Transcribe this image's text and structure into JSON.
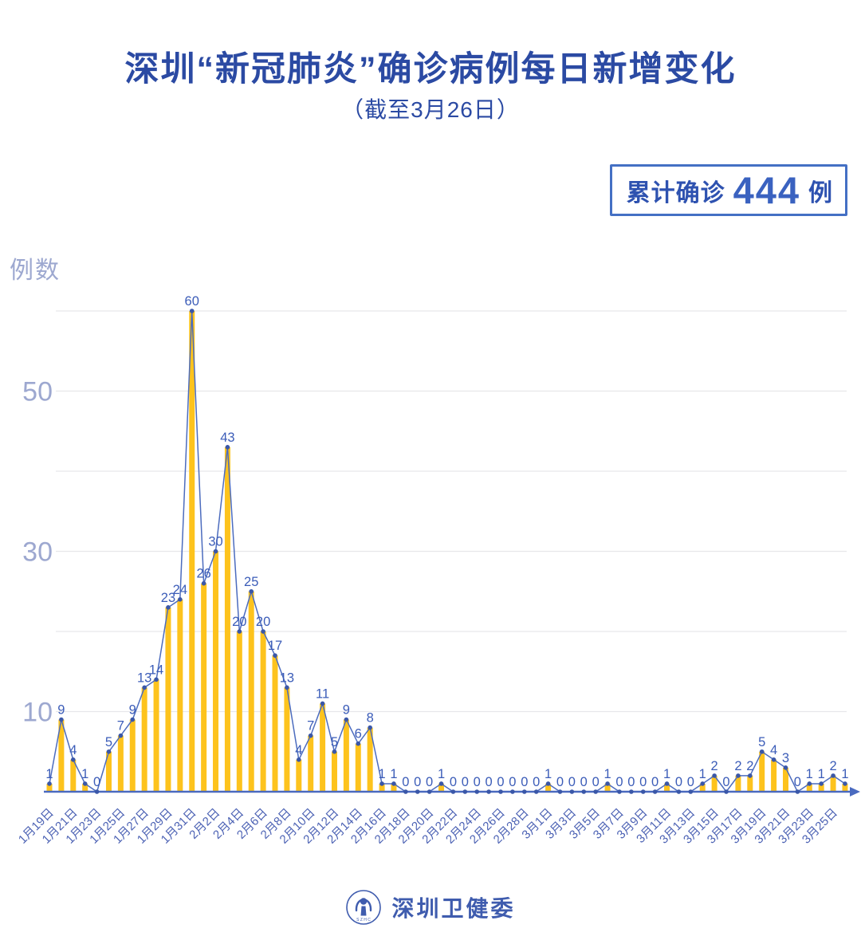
{
  "header": {
    "title": "深圳“新冠肺炎”确诊病例每日新增变化",
    "subtitle": "（截至3月26日）"
  },
  "badge": {
    "label": "累计确诊",
    "value": "444",
    "unit": "例"
  },
  "footer": {
    "org_name": "深圳卫健委",
    "logo_text": "S Z H C"
  },
  "colors": {
    "bar": "#fdc31d",
    "line": "#4c6cbe",
    "marker": "#3a57a8",
    "data_label": "#3b5cb8",
    "axis": "#4a6abf",
    "x_label": "#4c62b4",
    "y_label": "#9da8d0",
    "grid": "#e7e7ea",
    "title": "#2b4aa3",
    "badge_border": "#4470c4",
    "footer": "#3f5cae"
  },
  "chart_data": {
    "type": "bar",
    "line_overlay": true,
    "title": "深圳“新冠肺炎”确诊病例每日新增变化",
    "subtitle": "（截至3月26日）",
    "xlabel": "",
    "ylabel": "例数",
    "ylim": [
      0,
      62
    ],
    "yticks_labeled": [
      10,
      30,
      50
    ],
    "gridline_values": [
      10,
      20,
      30,
      40,
      50,
      60
    ],
    "x_tick_every": 2,
    "legend_position": "none",
    "cumulative_total": 444,
    "x": [
      "1月19日",
      "1月20日",
      "1月21日",
      "1月22日",
      "1月23日",
      "1月24日",
      "1月25日",
      "1月26日",
      "1月27日",
      "1月28日",
      "1月29日",
      "1月30日",
      "1月31日",
      "2月1日",
      "2月2日",
      "2月3日",
      "2月4日",
      "2月5日",
      "2月6日",
      "2月7日",
      "2月8日",
      "2月9日",
      "2月10日",
      "2月11日",
      "2月12日",
      "2月13日",
      "2月14日",
      "2月15日",
      "2月16日",
      "2月17日",
      "2月18日",
      "2月19日",
      "2月20日",
      "2月21日",
      "2月22日",
      "2月23日",
      "2月24日",
      "2月25日",
      "2月26日",
      "2月27日",
      "2月28日",
      "2月29日",
      "3月1日",
      "3月2日",
      "3月3日",
      "3月4日",
      "3月5日",
      "3月6日",
      "3月7日",
      "3月8日",
      "3月9日",
      "3月10日",
      "3月11日",
      "3月12日",
      "3月13日",
      "3月14日",
      "3月15日",
      "3月16日",
      "3月17日",
      "3月18日",
      "3月19日",
      "3月20日",
      "3月21日",
      "3月22日",
      "3月23日",
      "3月24日",
      "3月25日",
      "3月26日"
    ],
    "values": [
      1,
      9,
      4,
      1,
      0,
      5,
      7,
      9,
      13,
      14,
      23,
      24,
      60,
      26,
      30,
      43,
      20,
      25,
      20,
      17,
      13,
      4,
      7,
      11,
      5,
      9,
      6,
      8,
      1,
      1,
      0,
      0,
      0,
      1,
      0,
      0,
      0,
      0,
      0,
      0,
      0,
      0,
      1,
      0,
      0,
      0,
      0,
      1,
      0,
      0,
      0,
      0,
      1,
      0,
      0,
      1,
      2,
      0,
      2,
      2,
      5,
      4,
      3,
      0,
      1,
      1,
      2,
      1
    ]
  }
}
